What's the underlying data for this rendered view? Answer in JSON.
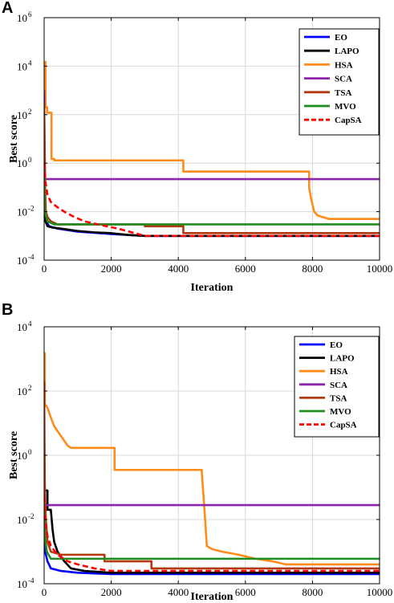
{
  "chart_data": [
    {
      "panel_label": "A",
      "type": "line",
      "xlabel": "Iteration",
      "ylabel": "Best score",
      "xlim": [
        0,
        10000
      ],
      "ylim": [
        0.0001,
        1000000
      ],
      "yscale": "log",
      "xticks": [
        0,
        2000,
        4000,
        6000,
        8000,
        10000
      ],
      "xtick_labels": [
        "0",
        "2000",
        "4000",
        "6000",
        "8000",
        "10000"
      ],
      "yticks": [
        0.0001,
        0.01,
        1,
        100,
        10000,
        1000000
      ],
      "ytick_labels": [
        {
          "base": "10",
          "exp": "-4"
        },
        {
          "base": "10",
          "exp": "-2"
        },
        {
          "base": "10",
          "exp": "0"
        },
        {
          "base": "10",
          "exp": "2"
        },
        {
          "base": "10",
          "exp": "4"
        },
        {
          "base": "10",
          "exp": "6"
        }
      ],
      "grid": true,
      "legend_position": "top-right",
      "series": [
        {
          "name": "EO",
          "color": "#0000ff",
          "dash": false,
          "x": [
            0,
            20,
            60,
            150,
            400,
            1000,
            2000,
            3000,
            10000
          ],
          "y": [
            1,
            0.01,
            0.004,
            0.0025,
            0.002,
            0.0015,
            0.0012,
            0.001,
            0.001
          ]
        },
        {
          "name": "LAPO",
          "color": "#000000",
          "dash": false,
          "x": [
            0,
            15,
            40,
            100,
            250,
            500,
            1000,
            1500,
            2000,
            2500,
            3000,
            10000
          ],
          "y": [
            50,
            0.01,
            0.004,
            0.0025,
            0.0022,
            0.002,
            0.0016,
            0.0014,
            0.0013,
            0.0011,
            0.001,
            0.001
          ]
        },
        {
          "name": "HSA",
          "color": "#ff8c1a",
          "dash": false,
          "x": [
            0,
            40,
            40,
            90,
            90,
            220,
            220,
            300,
            300,
            4150,
            4150,
            7900,
            7900,
            7950,
            8000,
            8050,
            8150,
            8300,
            8500,
            10000
          ],
          "y": [
            2000,
            15000,
            200,
            200,
            120,
            120,
            1.5,
            1.5,
            1.3,
            1.3,
            0.45,
            0.45,
            0.1,
            0.04,
            0.02,
            0.01,
            0.007,
            0.006,
            0.005,
            0.005
          ]
        },
        {
          "name": "SCA",
          "color": "#8e24aa",
          "dash": false,
          "x": [
            0,
            15,
            30,
            10000
          ],
          "y": [
            1000,
            1,
            0.22,
            0.22
          ]
        },
        {
          "name": "TSA",
          "color": "#b23a10",
          "dash": false,
          "x": [
            0,
            30,
            50,
            100,
            200,
            400,
            1000,
            3000,
            3000,
            4150,
            4150,
            10000
          ],
          "y": [
            300,
            0.1,
            0.01,
            0.006,
            0.004,
            0.003,
            0.003,
            0.003,
            0.0025,
            0.0025,
            0.0013,
            0.0013
          ]
        },
        {
          "name": "MVO",
          "color": "#1e8c1e",
          "dash": false,
          "x": [
            0,
            20,
            100,
            300,
            10000
          ],
          "y": [
            0.5,
            0.01,
            0.004,
            0.003,
            0.003
          ]
        },
        {
          "name": "CapSA",
          "color": "#ff0000",
          "dash": true,
          "x": [
            0,
            30,
            100,
            200,
            400,
            600,
            900,
            1200,
            1600,
            2200,
            3000,
            10000
          ],
          "y": [
            1,
            0.2,
            0.05,
            0.025,
            0.015,
            0.01,
            0.006,
            0.004,
            0.003,
            0.002,
            0.001,
            0.001
          ]
        }
      ]
    },
    {
      "panel_label": "B",
      "type": "line",
      "xlabel": "Iteration",
      "ylabel": "Best score",
      "xlim": [
        0,
        10000
      ],
      "ylim": [
        0.0001,
        10000
      ],
      "yscale": "log",
      "xticks": [
        0,
        2000,
        4000,
        6000,
        8000,
        10000
      ],
      "xtick_labels": [
        "0",
        "2000",
        "4000",
        "6000",
        "8000",
        "10000"
      ],
      "yticks": [
        0.0001,
        0.01,
        1,
        100,
        10000
      ],
      "ytick_labels": [
        {
          "base": "10",
          "exp": "-4"
        },
        {
          "base": "10",
          "exp": "-2"
        },
        {
          "base": "10",
          "exp": "0"
        },
        {
          "base": "10",
          "exp": "2"
        },
        {
          "base": "10",
          "exp": "4"
        }
      ],
      "grid": true,
      "legend_position": "top-right",
      "series": [
        {
          "name": "EO",
          "color": "#0000ff",
          "dash": false,
          "x": [
            0,
            30,
            100,
            200,
            500,
            1000,
            2000,
            10000
          ],
          "y": [
            0.05,
            0.001,
            0.0005,
            0.0003,
            0.00025,
            0.00022,
            0.0002,
            0.0002
          ]
        },
        {
          "name": "LAPO",
          "color": "#000000",
          "dash": false,
          "x": [
            0,
            100,
            100,
            200,
            250,
            300,
            400,
            600,
            800,
            1200,
            2000,
            10000
          ],
          "y": [
            0.08,
            0.08,
            0.02,
            0.02,
            0.005,
            0.002,
            0.001,
            0.0005,
            0.0003,
            0.00025,
            0.00022,
            0.00022
          ]
        },
        {
          "name": "HSA",
          "color": "#ff8c1a",
          "dash": false,
          "x": [
            0,
            20,
            20,
            100,
            200,
            300,
            500,
            700,
            800,
            2100,
            2100,
            4700,
            4700,
            4800,
            4850,
            5000,
            5300,
            5800,
            6300,
            6800,
            7200,
            10000
          ],
          "y": [
            300,
            1500,
            40,
            30,
            15,
            8,
            4,
            2,
            1.7,
            1.7,
            0.35,
            0.35,
            0.3,
            0.01,
            0.0015,
            0.0012,
            0.001,
            0.0008,
            0.0006,
            0.0005,
            0.0004,
            0.0004
          ]
        },
        {
          "name": "SCA",
          "color": "#8e24aa",
          "dash": false,
          "x": [
            0,
            30,
            60,
            10000
          ],
          "y": [
            1,
            0.03,
            0.028,
            0.028
          ]
        },
        {
          "name": "TSA",
          "color": "#b23a10",
          "dash": false,
          "x": [
            0,
            20,
            50,
            100,
            200,
            500,
            1800,
            1800,
            3200,
            3200,
            10000
          ],
          "y": [
            200,
            0.1,
            0.01,
            0.002,
            0.001,
            0.0008,
            0.0008,
            0.0005,
            0.0005,
            0.0003,
            0.0003
          ]
        },
        {
          "name": "MVO",
          "color": "#1e8c1e",
          "dash": false,
          "x": [
            0,
            20,
            80,
            200,
            10000
          ],
          "y": [
            0.03,
            0.003,
            0.001,
            0.0006,
            0.0006
          ]
        },
        {
          "name": "CapSA",
          "color": "#ff0000",
          "dash": true,
          "x": [
            0,
            30,
            100,
            200,
            400,
            700,
            1000,
            1500,
            2000,
            3000,
            10000
          ],
          "y": [
            0.05,
            0.01,
            0.003,
            0.0015,
            0.0008,
            0.0005,
            0.0004,
            0.0003,
            0.00025,
            0.00025,
            0.00025
          ]
        }
      ]
    }
  ]
}
